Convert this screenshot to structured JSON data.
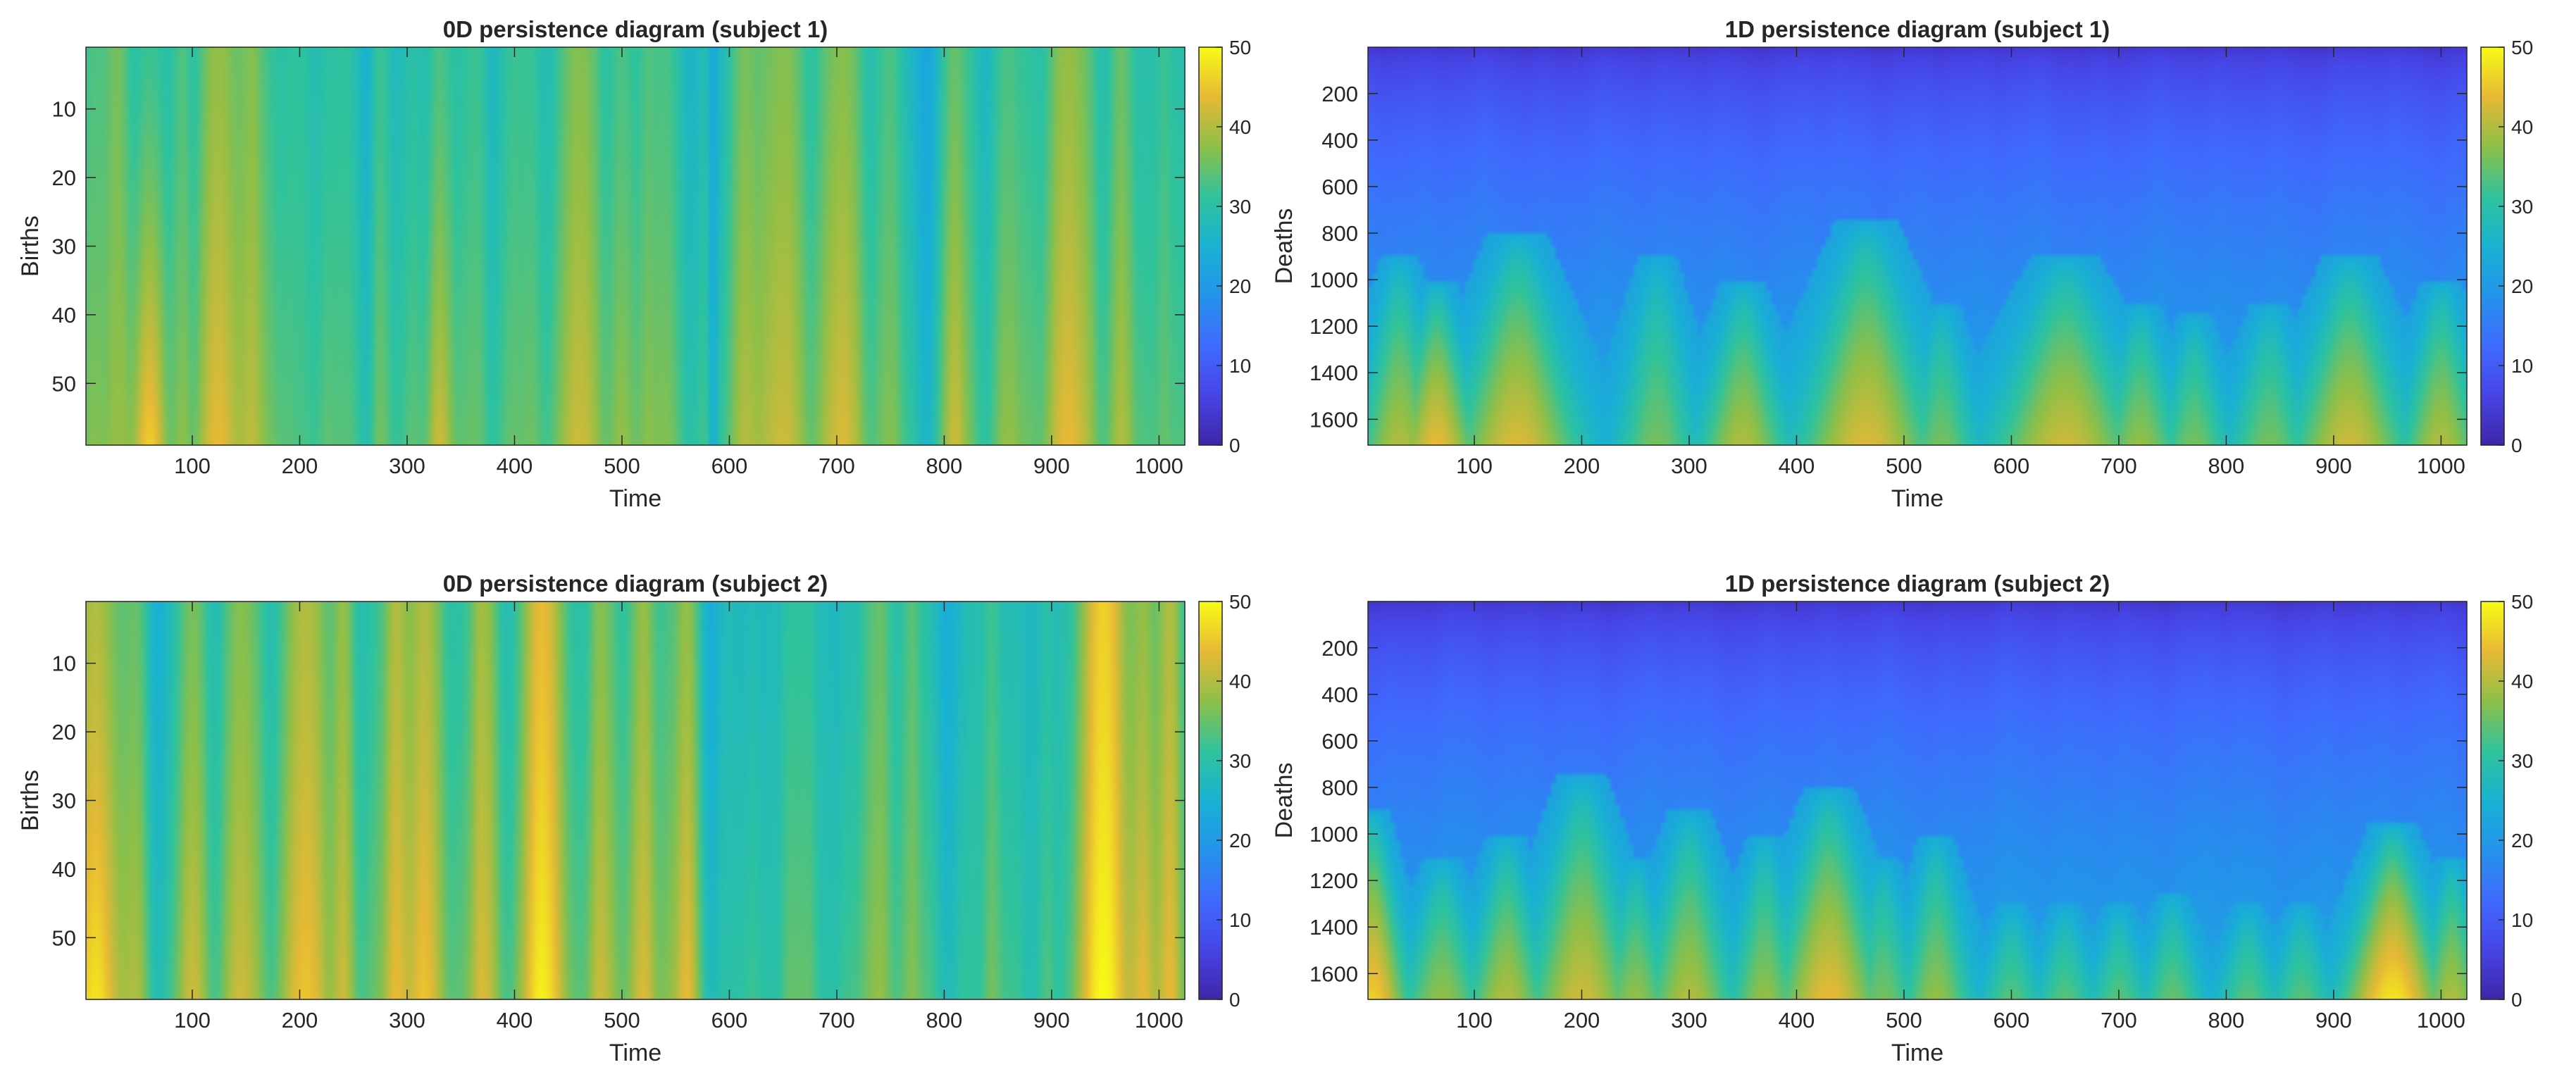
{
  "chart_data": [
    {
      "type": "heatmap",
      "title": "0D persistence diagram (subject 1)",
      "xlabel": "Time",
      "ylabel": "Births",
      "xlim": [
        1,
        1024
      ],
      "ylim": [
        1,
        59
      ],
      "xticks": [
        "100",
        "200",
        "300",
        "400",
        "500",
        "600",
        "700",
        "800",
        "900",
        "1000"
      ],
      "yticks": [
        "10",
        "20",
        "30",
        "40",
        "50"
      ],
      "colorbar": {
        "ticks": [
          "0",
          "10",
          "20",
          "30",
          "40",
          "50"
        ],
        "min": 0,
        "max": 50,
        "colormap": "parula"
      },
      "hotspots": [
        {
          "x": 30,
          "w": 14,
          "top": 36,
          "bottom": 38
        },
        {
          "x": 60,
          "w": 16,
          "top": 32,
          "bottom": 46
        },
        {
          "x": 90,
          "w": 10,
          "top": 33,
          "bottom": 37
        },
        {
          "x": 125,
          "w": 22,
          "top": 38,
          "bottom": 44
        },
        {
          "x": 155,
          "w": 16,
          "top": 37,
          "bottom": 41
        },
        {
          "x": 200,
          "w": 12,
          "top": 31,
          "bottom": 33
        },
        {
          "x": 240,
          "w": 10,
          "top": 31,
          "bottom": 34
        },
        {
          "x": 275,
          "w": 10,
          "top": 32,
          "bottom": 36
        },
        {
          "x": 330,
          "w": 12,
          "top": 33,
          "bottom": 42
        },
        {
          "x": 365,
          "w": 10,
          "top": 32,
          "bottom": 35
        },
        {
          "x": 400,
          "w": 12,
          "top": 32,
          "bottom": 35
        },
        {
          "x": 460,
          "w": 24,
          "top": 37,
          "bottom": 42
        },
        {
          "x": 500,
          "w": 14,
          "top": 33,
          "bottom": 38
        },
        {
          "x": 540,
          "w": 12,
          "top": 33,
          "bottom": 37
        },
        {
          "x": 585,
          "w": 5,
          "top": 22,
          "bottom": 24
        },
        {
          "x": 615,
          "w": 16,
          "top": 36,
          "bottom": 40
        },
        {
          "x": 650,
          "w": 26,
          "top": 37,
          "bottom": 42
        },
        {
          "x": 705,
          "w": 20,
          "top": 37,
          "bottom": 43
        },
        {
          "x": 750,
          "w": 10,
          "top": 33,
          "bottom": 37
        },
        {
          "x": 810,
          "w": 12,
          "top": 35,
          "bottom": 42
        },
        {
          "x": 860,
          "w": 12,
          "top": 33,
          "bottom": 38
        },
        {
          "x": 915,
          "w": 24,
          "top": 38,
          "bottom": 44
        },
        {
          "x": 965,
          "w": 14,
          "top": 35,
          "bottom": 40
        },
        {
          "x": 1005,
          "w": 12,
          "top": 32,
          "bottom": 35
        }
      ]
    },
    {
      "type": "heatmap",
      "title": "1D persistence diagram (subject 1)",
      "xlabel": "Time",
      "ylabel": "Deaths",
      "xlim": [
        1,
        1024
      ],
      "ylim": [
        1,
        1711
      ],
      "xticks": [
        "100",
        "200",
        "300",
        "400",
        "500",
        "600",
        "700",
        "800",
        "900",
        "1000"
      ],
      "yticks": [
        "200",
        "400",
        "600",
        "800",
        "1000",
        "1200",
        "1400",
        "1600"
      ],
      "colorbar": {
        "ticks": [
          "0",
          "10",
          "20",
          "30",
          "40",
          "50"
        ],
        "min": 0,
        "max": 50,
        "colormap": "parula"
      },
      "peaks": [
        {
          "x": 30,
          "w": 45,
          "top": 900,
          "peak": 40
        },
        {
          "x": 65,
          "w": 45,
          "top": 1000,
          "peak": 44
        },
        {
          "x": 140,
          "w": 70,
          "top": 800,
          "peak": 43
        },
        {
          "x": 270,
          "w": 45,
          "top": 900,
          "peak": 36
        },
        {
          "x": 350,
          "w": 50,
          "top": 1000,
          "peak": 40
        },
        {
          "x": 465,
          "w": 75,
          "top": 750,
          "peak": 43
        },
        {
          "x": 535,
          "w": 40,
          "top": 1100,
          "peak": 36
        },
        {
          "x": 650,
          "w": 80,
          "top": 900,
          "peak": 42
        },
        {
          "x": 720,
          "w": 45,
          "top": 1100,
          "peak": 38
        },
        {
          "x": 770,
          "w": 40,
          "top": 1150,
          "peak": 36
        },
        {
          "x": 840,
          "w": 45,
          "top": 1100,
          "peak": 36
        },
        {
          "x": 915,
          "w": 65,
          "top": 900,
          "peak": 42
        },
        {
          "x": 1000,
          "w": 45,
          "top": 1000,
          "peak": 40
        }
      ]
    },
    {
      "type": "heatmap",
      "title": "0D persistence diagram (subject 2)",
      "xlabel": "Time",
      "ylabel": "Births",
      "xlim": [
        1,
        1024
      ],
      "ylim": [
        1,
        59
      ],
      "xticks": [
        "100",
        "200",
        "300",
        "400",
        "500",
        "600",
        "700",
        "800",
        "900",
        "1000"
      ],
      "yticks": [
        "10",
        "20",
        "30",
        "40",
        "50"
      ],
      "colorbar": {
        "ticks": [
          "0",
          "10",
          "20",
          "30",
          "40",
          "50"
        ],
        "min": 0,
        "max": 50,
        "colormap": "parula"
      },
      "hotspots": [
        {
          "x": 10,
          "w": 22,
          "top": 40,
          "bottom": 48
        },
        {
          "x": 45,
          "w": 14,
          "top": 35,
          "bottom": 40
        },
        {
          "x": 100,
          "w": 16,
          "top": 36,
          "bottom": 42
        },
        {
          "x": 145,
          "w": 16,
          "top": 37,
          "bottom": 42
        },
        {
          "x": 205,
          "w": 24,
          "top": 40,
          "bottom": 45
        },
        {
          "x": 240,
          "w": 12,
          "top": 38,
          "bottom": 42
        },
        {
          "x": 290,
          "w": 16,
          "top": 40,
          "bottom": 44
        },
        {
          "x": 315,
          "w": 16,
          "top": 40,
          "bottom": 45
        },
        {
          "x": 370,
          "w": 14,
          "top": 39,
          "bottom": 43
        },
        {
          "x": 425,
          "w": 22,
          "top": 44,
          "bottom": 49
        },
        {
          "x": 480,
          "w": 14,
          "top": 37,
          "bottom": 42
        },
        {
          "x": 520,
          "w": 14,
          "top": 38,
          "bottom": 43
        },
        {
          "x": 560,
          "w": 12,
          "top": 38,
          "bottom": 44
        },
        {
          "x": 600,
          "w": 10,
          "top": 28,
          "bottom": 30
        },
        {
          "x": 640,
          "w": 10,
          "top": 28,
          "bottom": 30
        },
        {
          "x": 690,
          "w": 10,
          "top": 28,
          "bottom": 30
        },
        {
          "x": 740,
          "w": 14,
          "top": 35,
          "bottom": 38
        },
        {
          "x": 770,
          "w": 10,
          "top": 34,
          "bottom": 37
        },
        {
          "x": 830,
          "w": 10,
          "top": 29,
          "bottom": 31
        },
        {
          "x": 880,
          "w": 10,
          "top": 27,
          "bottom": 29
        },
        {
          "x": 910,
          "w": 8,
          "top": 27,
          "bottom": 29
        },
        {
          "x": 948,
          "w": 26,
          "top": 46,
          "bottom": 50
        },
        {
          "x": 985,
          "w": 14,
          "top": 38,
          "bottom": 44
        },
        {
          "x": 1010,
          "w": 12,
          "top": 40,
          "bottom": 44
        }
      ]
    },
    {
      "type": "heatmap",
      "title": "1D persistence diagram (subject 2)",
      "xlabel": "Time",
      "ylabel": "Deaths",
      "xlim": [
        1,
        1024
      ],
      "ylim": [
        1,
        1711
      ],
      "xticks": [
        "100",
        "200",
        "300",
        "400",
        "500",
        "600",
        "700",
        "800",
        "900",
        "1000"
      ],
      "yticks": [
        "200",
        "400",
        "600",
        "800",
        "1000",
        "1200",
        "1400",
        "1600"
      ],
      "colorbar": {
        "ticks": [
          "0",
          "10",
          "20",
          "30",
          "40",
          "50"
        ],
        "min": 0,
        "max": 50,
        "colormap": "parula"
      },
      "peaks": [
        {
          "x": 5,
          "w": 40,
          "top": 900,
          "peak": 46
        },
        {
          "x": 70,
          "w": 45,
          "top": 1100,
          "peak": 38
        },
        {
          "x": 130,
          "w": 45,
          "top": 1000,
          "peak": 40
        },
        {
          "x": 200,
          "w": 60,
          "top": 750,
          "peak": 42
        },
        {
          "x": 250,
          "w": 40,
          "top": 1100,
          "peak": 38
        },
        {
          "x": 300,
          "w": 50,
          "top": 900,
          "peak": 40
        },
        {
          "x": 370,
          "w": 40,
          "top": 1000,
          "peak": 38
        },
        {
          "x": 430,
          "w": 60,
          "top": 800,
          "peak": 44
        },
        {
          "x": 480,
          "w": 40,
          "top": 1100,
          "peak": 36
        },
        {
          "x": 530,
          "w": 40,
          "top": 1000,
          "peak": 38
        },
        {
          "x": 600,
          "w": 35,
          "top": 1300,
          "peak": 34
        },
        {
          "x": 650,
          "w": 35,
          "top": 1300,
          "peak": 34
        },
        {
          "x": 700,
          "w": 35,
          "top": 1300,
          "peak": 34
        },
        {
          "x": 750,
          "w": 35,
          "top": 1250,
          "peak": 35
        },
        {
          "x": 820,
          "w": 35,
          "top": 1300,
          "peak": 34
        },
        {
          "x": 870,
          "w": 35,
          "top": 1300,
          "peak": 34
        },
        {
          "x": 955,
          "w": 55,
          "top": 950,
          "peak": 48
        },
        {
          "x": 1010,
          "w": 35,
          "top": 1100,
          "peak": 40
        }
      ]
    }
  ]
}
